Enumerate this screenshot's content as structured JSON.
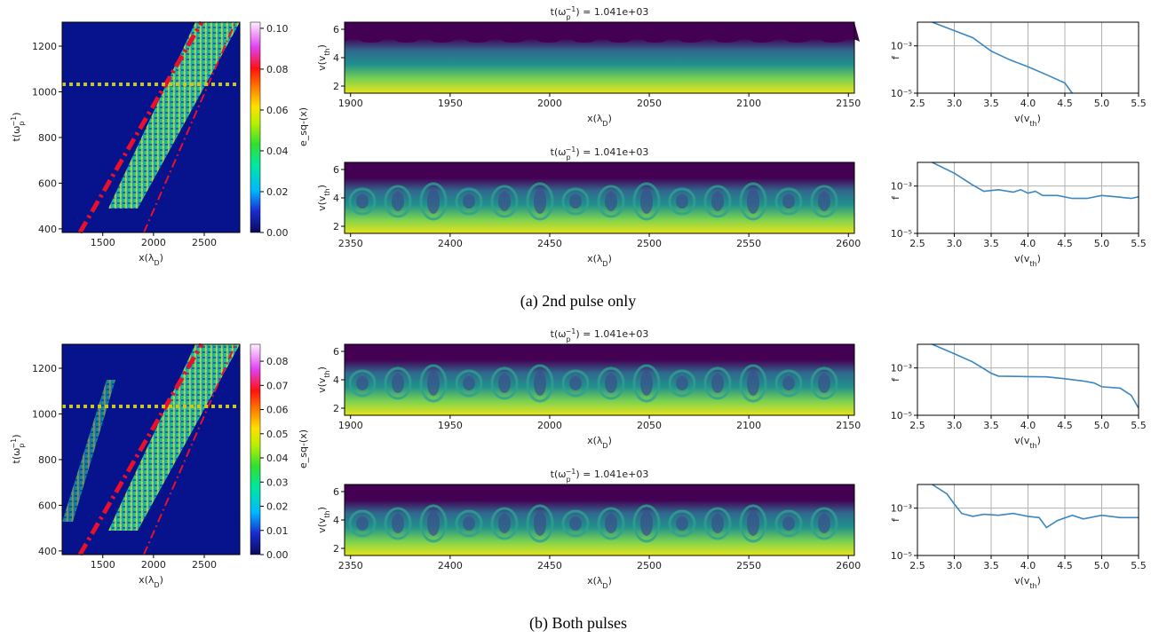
{
  "panels": [
    {
      "caption": "(a) 2nd pulse only",
      "heatmap": {
        "xlim": [
          1100,
          2850
        ],
        "xticks": [
          1500,
          2000,
          2500
        ],
        "ylim": [
          384,
          1305
        ],
        "yticks": [
          400,
          600,
          800,
          1000,
          1200
        ],
        "xlabel": [
          {
            "text": "x(λ"
          },
          {
            "text": "D",
            "shift": "sub"
          },
          {
            "text": ")"
          }
        ],
        "ylabel": [
          {
            "text": "t(ω"
          },
          {
            "text": "p",
            "shift": "sub"
          },
          {
            "text": "−1",
            "shift": "super"
          },
          {
            "text": ")"
          }
        ],
        "cbar_label": "e_sq-(x)",
        "clim": [
          0,
          0.103
        ],
        "cticks": [
          {
            "value": 0,
            "label": "0.00"
          },
          {
            "value": 0.02,
            "label": "0.02"
          },
          {
            "value": 0.04,
            "label": "0.04"
          },
          {
            "value": 0.06,
            "label": "0.06"
          },
          {
            "value": 0.08,
            "label": "0.08"
          },
          {
            "value": 0.1,
            "label": "0.10"
          }
        ]
      },
      "phase": [
        {
          "title": [
            {
              "text": "t(ω"
            },
            {
              "text": "p",
              "shift": "sub"
            },
            {
              "text": "−1",
              "shift": "super"
            },
            {
              "text": ") = 1.041e+03"
            }
          ],
          "xlim": [
            1897,
            2153
          ],
          "xticks": [
            1900,
            1950,
            2000,
            2050,
            2100,
            2150
          ],
          "ylim": [
            1.5,
            6.5
          ],
          "yticks": [
            2,
            4,
            6
          ],
          "xlabel": [
            {
              "text": "x(λ"
            },
            {
              "text": "D",
              "shift": "sub"
            },
            {
              "text": ")"
            }
          ],
          "ylabel": [
            {
              "text": "v(v"
            },
            {
              "text": "th",
              "shift": "sub"
            },
            {
              "text": ")"
            }
          ]
        },
        {
          "title": [
            {
              "text": "t(ω"
            },
            {
              "text": "p",
              "shift": "sub"
            },
            {
              "text": "−1",
              "shift": "super"
            },
            {
              "text": ") = 1.041e+03"
            }
          ],
          "xlim": [
            2347,
            2603
          ],
          "xticks": [
            2350,
            2400,
            2450,
            2500,
            2550,
            2600
          ],
          "ylim": [
            1.5,
            6.5
          ],
          "yticks": [
            2,
            4,
            6
          ],
          "xlabel": [
            {
              "text": "x(λ"
            },
            {
              "text": "D",
              "shift": "sub"
            },
            {
              "text": ")"
            }
          ],
          "ylabel": [
            {
              "text": "v(v"
            },
            {
              "text": "th",
              "shift": "sub"
            },
            {
              "text": ")"
            }
          ]
        }
      ],
      "dist": [
        {
          "type": "line",
          "log_y": true,
          "grid": true,
          "color": "#3a86c0",
          "xlim": [
            2.5,
            5.5
          ],
          "ylim": [
            1e-05,
            0.01
          ],
          "xticks": [
            2.5,
            {
              "value": 3,
              "label": "3.0"
            },
            3.5,
            {
              "value": 4,
              "label": "4.0"
            },
            4.5,
            {
              "value": 5,
              "label": "5.0"
            },
            5.5
          ],
          "yticks": [
            {
              "value": 0.001,
              "label": "10⁻³"
            },
            {
              "value": 1e-05,
              "label": "10⁻⁵"
            }
          ],
          "ylabel": "f",
          "xlabel": [
            {
              "text": "v(v"
            },
            {
              "text": "th",
              "shift": "sub"
            },
            {
              "text": ")"
            }
          ],
          "x": [
            2.7,
            3.0,
            3.25,
            3.5,
            3.75,
            4.0,
            4.25,
            4.5,
            4.6
          ],
          "values": [
            0.01,
            0.0044,
            0.0022,
            0.0006,
            0.00026,
            0.00013,
            6e-05,
            2.7e-05,
            1e-05
          ]
        },
        {
          "type": "line",
          "log_y": true,
          "grid": true,
          "color": "#3a86c0",
          "xlim": [
            2.5,
            5.5
          ],
          "ylim": [
            1e-05,
            0.01
          ],
          "xticks": [
            2.5,
            {
              "value": 3,
              "label": "3.0"
            },
            3.5,
            {
              "value": 4,
              "label": "4.0"
            },
            4.5,
            {
              "value": 5,
              "label": "5.0"
            },
            5.5
          ],
          "yticks": [
            {
              "value": 0.001,
              "label": "10⁻³"
            },
            {
              "value": 1e-05,
              "label": "10⁻⁵"
            }
          ],
          "ylabel": "f",
          "xlabel": [
            {
              "text": "v(v"
            },
            {
              "text": "th",
              "shift": "sub"
            },
            {
              "text": ")"
            }
          ],
          "x": [
            2.7,
            3.0,
            3.25,
            3.4,
            3.6,
            3.8,
            3.9,
            4.0,
            4.1,
            4.2,
            4.4,
            4.6,
            4.8,
            5.0,
            5.2,
            5.4,
            5.5
          ],
          "values": [
            0.01,
            0.0035,
            0.0011,
            0.0006,
            0.0007,
            0.00055,
            0.0007,
            0.0005,
            0.0006,
            0.0004,
            0.0004,
            0.0003,
            0.0003,
            0.0004,
            0.00035,
            0.0003,
            0.00035
          ]
        }
      ]
    },
    {
      "caption": "(b) Both pulses",
      "heatmap": {
        "xlim": [
          1100,
          2850
        ],
        "xticks": [
          1500,
          2000,
          2500
        ],
        "ylim": [
          384,
          1305
        ],
        "yticks": [
          400,
          600,
          800,
          1000,
          1200
        ],
        "xlabel": [
          {
            "text": "x(λ"
          },
          {
            "text": "D",
            "shift": "sub"
          },
          {
            "text": ")"
          }
        ],
        "ylabel": [
          {
            "text": "t(ω"
          },
          {
            "text": "p",
            "shift": "sub"
          },
          {
            "text": "−1",
            "shift": "super"
          },
          {
            "text": ")"
          }
        ],
        "cbar_label": "e_sq-(x)",
        "clim": [
          0,
          0.087
        ],
        "cticks": [
          {
            "value": 0,
            "label": "0.00"
          },
          {
            "value": 0.01,
            "label": "0.01"
          },
          {
            "value": 0.02,
            "label": "0.02"
          },
          {
            "value": 0.03,
            "label": "0.03"
          },
          {
            "value": 0.04,
            "label": "0.04"
          },
          {
            "value": 0.05,
            "label": "0.05"
          },
          {
            "value": 0.06,
            "label": "0.06"
          },
          {
            "value": 0.07,
            "label": "0.07"
          },
          {
            "value": 0.08,
            "label": "0.08"
          }
        ]
      },
      "phase": [
        {
          "title": [
            {
              "text": "t(ω"
            },
            {
              "text": "p",
              "shift": "sub"
            },
            {
              "text": "−1",
              "shift": "super"
            },
            {
              "text": ") = 1.041e+03"
            }
          ],
          "xlim": [
            1897,
            2153
          ],
          "xticks": [
            1900,
            1950,
            2000,
            2050,
            2100,
            2150
          ],
          "ylim": [
            1.5,
            6.5
          ],
          "yticks": [
            2,
            4,
            6
          ],
          "xlabel": [
            {
              "text": "x(λ"
            },
            {
              "text": "D",
              "shift": "sub"
            },
            {
              "text": ")"
            }
          ],
          "ylabel": [
            {
              "text": "v(v"
            },
            {
              "text": "th",
              "shift": "sub"
            },
            {
              "text": ")"
            }
          ]
        },
        {
          "title": [
            {
              "text": "t(ω"
            },
            {
              "text": "p",
              "shift": "sub"
            },
            {
              "text": "−1",
              "shift": "super"
            },
            {
              "text": ") = 1.041e+03"
            }
          ],
          "xlim": [
            2347,
            2603
          ],
          "xticks": [
            2350,
            2400,
            2450,
            2500,
            2550,
            2600
          ],
          "ylim": [
            1.5,
            6.5
          ],
          "yticks": [
            2,
            4,
            6
          ],
          "xlabel": [
            {
              "text": "x(λ"
            },
            {
              "text": "D",
              "shift": "sub"
            },
            {
              "text": ")"
            }
          ],
          "ylabel": [
            {
              "text": "v(v"
            },
            {
              "text": "th",
              "shift": "sub"
            },
            {
              "text": ")"
            }
          ]
        }
      ],
      "dist": [
        {
          "type": "line",
          "log_y": true,
          "grid": true,
          "color": "#3a86c0",
          "xlim": [
            2.5,
            5.5
          ],
          "ylim": [
            1e-05,
            0.01
          ],
          "xticks": [
            2.5,
            {
              "value": 3,
              "label": "3.0"
            },
            3.5,
            {
              "value": 4,
              "label": "4.0"
            },
            4.5,
            {
              "value": 5,
              "label": "5.0"
            },
            5.5
          ],
          "yticks": [
            {
              "value": 0.001,
              "label": "10⁻³"
            },
            {
              "value": 1e-05,
              "label": "10⁻⁵"
            }
          ],
          "ylabel": "f",
          "xlabel": [
            {
              "text": "v(v"
            },
            {
              "text": "th",
              "shift": "sub"
            },
            {
              "text": ")"
            }
          ],
          "x": [
            2.7,
            3.0,
            3.25,
            3.5,
            3.6,
            4.0,
            4.25,
            4.5,
            4.75,
            4.9,
            5.0,
            5.25,
            5.4,
            5.5
          ],
          "values": [
            0.01,
            0.004,
            0.0018,
            0.0006,
            0.00045,
            0.00043,
            0.00042,
            0.00035,
            0.00028,
            0.00023,
            0.00016,
            0.00014,
            7e-05,
            2e-05
          ]
        },
        {
          "type": "line",
          "log_y": true,
          "grid": true,
          "color": "#3a86c0",
          "xlim": [
            2.5,
            5.5
          ],
          "ylim": [
            1e-05,
            0.01
          ],
          "xticks": [
            2.5,
            {
              "value": 3,
              "label": "3.0"
            },
            3.5,
            {
              "value": 4,
              "label": "4.0"
            },
            4.5,
            {
              "value": 5,
              "label": "5.0"
            },
            5.5
          ],
          "yticks": [
            {
              "value": 0.001,
              "label": "10⁻³"
            },
            {
              "value": 1e-05,
              "label": "10⁻⁵"
            }
          ],
          "ylabel": "f",
          "xlabel": [
            {
              "text": "v(v"
            },
            {
              "text": "th",
              "shift": "sub"
            },
            {
              "text": ")"
            }
          ],
          "x": [
            2.7,
            2.9,
            3.0,
            3.1,
            3.25,
            3.4,
            3.6,
            3.8,
            4.0,
            4.15,
            4.25,
            4.4,
            4.6,
            4.75,
            5.0,
            5.25,
            5.5
          ],
          "values": [
            0.01,
            0.004,
            0.0015,
            0.0006,
            0.00045,
            0.00055,
            0.0005,
            0.0006,
            0.00045,
            0.0004,
            0.00015,
            0.0003,
            0.0005,
            0.00035,
            0.0005,
            0.0004,
            0.0004
          ]
        }
      ]
    }
  ]
}
